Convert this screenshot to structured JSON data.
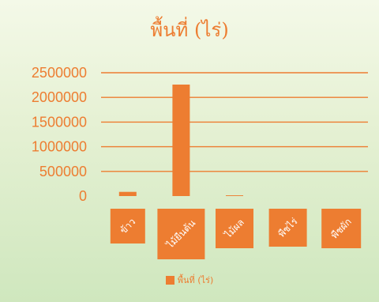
{
  "chart_data": {
    "type": "bar",
    "title": "พื้นที่ (ไร่)",
    "categories": [
      "ข้าว",
      "ไม้ยืนต้น",
      "ไม้ผล",
      "พืชไร่",
      "พืชผัก"
    ],
    "series": [
      {
        "name": "พื้นที่ (ไร่)",
        "values": [
          85000,
          2260000,
          15000,
          0,
          0
        ]
      }
    ],
    "ylim": [
      0,
      2500000
    ],
    "yticks": [
      "0",
      "500000",
      "1000000",
      "1500000",
      "2000000",
      "2500000"
    ],
    "grid": true,
    "legend_position": "bottom",
    "colors": {
      "bar": "#ed7d31",
      "text": "#ed7d31"
    }
  }
}
